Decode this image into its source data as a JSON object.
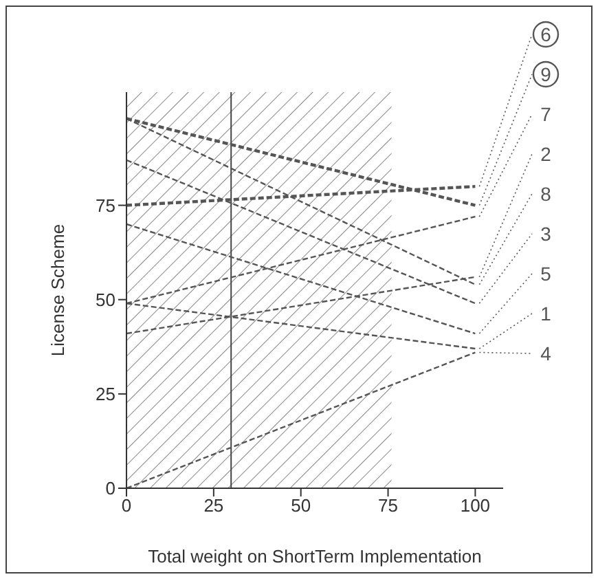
{
  "chart_data": {
    "type": "line",
    "xlabel": "Total weight on ShortTerm Implementation",
    "ylabel": "License Scheme",
    "x": [
      0,
      100
    ],
    "series": [
      {
        "name": "6",
        "color": "#555555",
        "values": [
          75,
          80
        ]
      },
      {
        "name": "9",
        "color": "#555555",
        "values": [
          98,
          75
        ]
      },
      {
        "name": "7",
        "color": "#555555",
        "values": [
          49,
          72
        ]
      },
      {
        "name": "2",
        "color": "#555555",
        "values": [
          41,
          56
        ]
      },
      {
        "name": "8",
        "color": "#555555",
        "values": [
          98,
          54
        ]
      },
      {
        "name": "3",
        "color": "#555555",
        "values": [
          87,
          49
        ]
      },
      {
        "name": "5",
        "color": "#555555",
        "values": [
          70,
          41
        ]
      },
      {
        "name": "1",
        "color": "#555555",
        "values": [
          49,
          37
        ]
      },
      {
        "name": "4",
        "color": "#555555",
        "values": [
          0,
          36
        ]
      }
    ],
    "xlim": [
      0,
      108
    ],
    "ylim": [
      0,
      105
    ],
    "xticks": [
      0,
      25,
      50,
      75,
      100
    ],
    "yticks": [
      0,
      25,
      50,
      75
    ],
    "ref_lines": [
      {
        "axis": "x",
        "value": 30,
        "color": "#444444"
      }
    ],
    "bands": [
      {
        "axis": "x",
        "from": 0,
        "to": 76,
        "color": "#888888"
      }
    ],
    "grid": false,
    "legend": "right",
    "marker": "none",
    "line_style": "dashed"
  }
}
